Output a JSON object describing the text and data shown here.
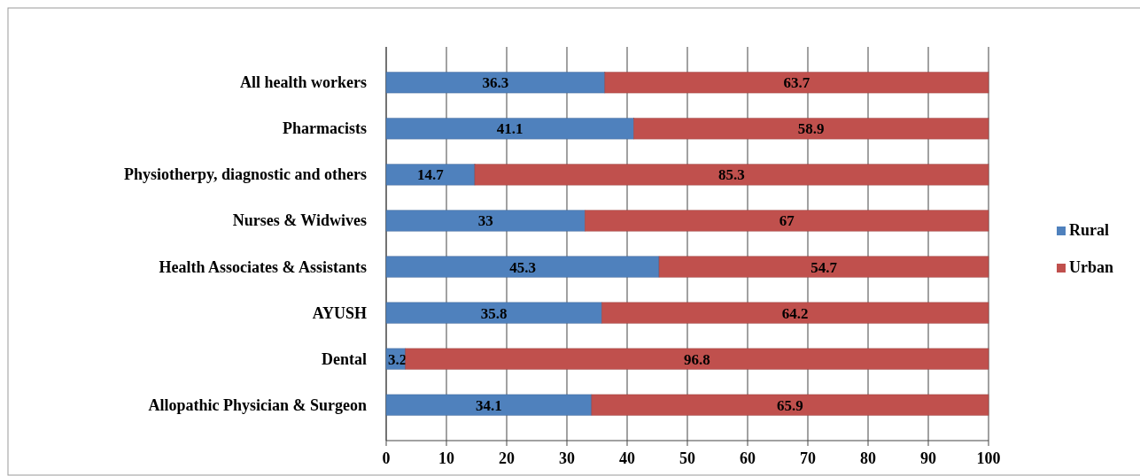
{
  "chart_data": {
    "type": "bar",
    "orientation": "horizontal",
    "stacked": true,
    "categories": [
      "All health workers",
      "Pharmacists",
      "Physiotherpy, diagnostic and others",
      "Nurses & Widwives",
      "Health Associates & Assistants",
      "AYUSH",
      "Dental",
      "Allopathic Physician & Surgeon"
    ],
    "series": [
      {
        "name": "Rural",
        "color": "#4f81bd",
        "values": [
          36.3,
          41.1,
          14.7,
          33,
          45.3,
          35.8,
          3.2,
          34.1
        ]
      },
      {
        "name": "Urban",
        "color": "#c0504d",
        "values": [
          63.7,
          58.9,
          85.3,
          67,
          54.7,
          64.2,
          96.8,
          65.9
        ]
      }
    ],
    "xlim": [
      0,
      100
    ],
    "xticks": [
      0,
      10,
      20,
      30,
      40,
      50,
      60,
      70,
      80,
      90,
      100
    ],
    "grid": "x",
    "legend": "right",
    "data_labels": true
  }
}
